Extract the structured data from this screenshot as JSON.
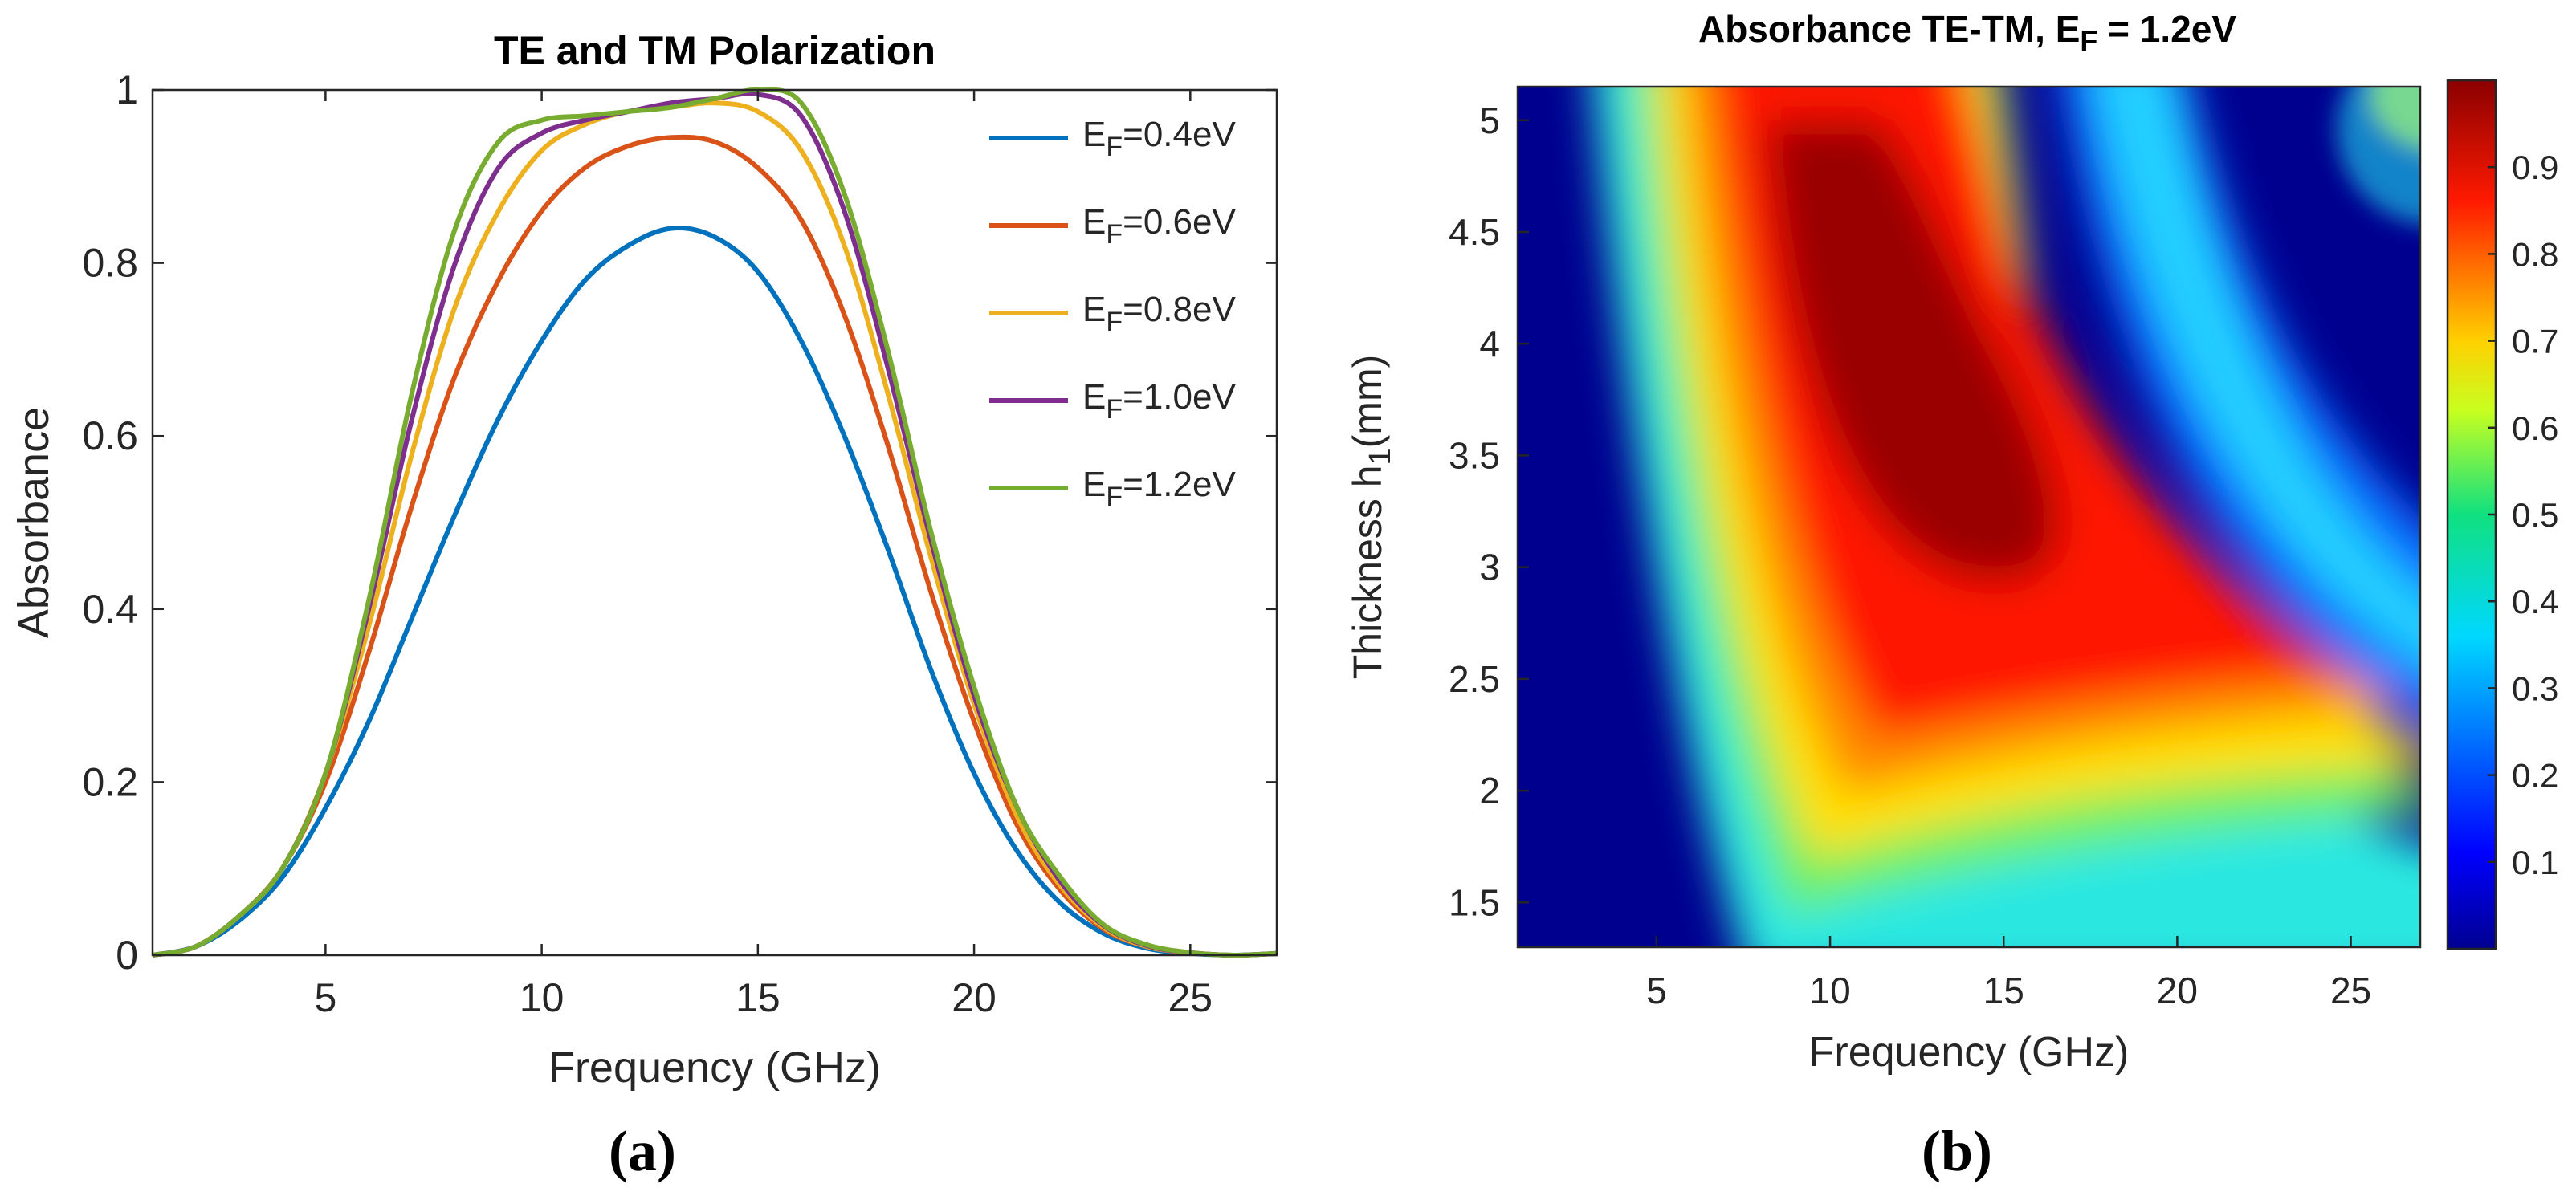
{
  "chart_data": [
    {
      "type": "line",
      "panel_label": "(a)",
      "title": "TE and TM Polarization",
      "xlabel": "Frequency (GHz)",
      "ylabel": "Absorbance",
      "xlim": [
        1,
        27
      ],
      "ylim": [
        0,
        1
      ],
      "xticks": [
        5,
        10,
        15,
        20,
        25
      ],
      "yticks": [
        0,
        0.2,
        0.4,
        0.6,
        0.8,
        1
      ],
      "ytick_labels": [
        "0",
        "0.2",
        "0.4",
        "0.6",
        "0.8",
        "1"
      ],
      "grid": false,
      "legend_position": "top-right",
      "x": [
        1,
        2,
        3,
        4,
        5,
        6,
        7,
        8,
        9,
        10,
        11,
        12,
        13,
        14,
        15,
        16,
        17,
        18,
        19,
        20,
        21,
        22,
        23,
        24,
        25,
        26,
        27
      ],
      "series": [
        {
          "name": "E_F=0.4eV",
          "legend_main": "E",
          "legend_sub": "F",
          "legend_rest": "=0.4eV",
          "color": "#0072BD",
          "values": [
            0,
            0.01,
            0.04,
            0.09,
            0.17,
            0.27,
            0.39,
            0.51,
            0.62,
            0.71,
            0.78,
            0.82,
            0.84,
            0.83,
            0.79,
            0.71,
            0.6,
            0.47,
            0.33,
            0.21,
            0.12,
            0.06,
            0.025,
            0.008,
            0.002,
            0.0,
            0.002
          ]
        },
        {
          "name": "E_F=0.6eV",
          "legend_main": "E",
          "legend_sub": "F",
          "legend_rest": "=0.6eV",
          "color": "#D95319",
          "values": [
            0,
            0.01,
            0.045,
            0.1,
            0.2,
            0.35,
            0.52,
            0.67,
            0.78,
            0.86,
            0.91,
            0.935,
            0.945,
            0.94,
            0.91,
            0.85,
            0.74,
            0.59,
            0.42,
            0.27,
            0.15,
            0.075,
            0.03,
            0.01,
            0.003,
            0.0,
            0.002
          ]
        },
        {
          "name": "E_F=0.8eV",
          "legend_main": "E",
          "legend_sub": "F",
          "legend_rest": "=0.8eV",
          "color": "#EDB120",
          "values": [
            0,
            0.01,
            0.045,
            0.1,
            0.21,
            0.38,
            0.58,
            0.75,
            0.86,
            0.93,
            0.96,
            0.975,
            0.98,
            0.985,
            0.975,
            0.93,
            0.82,
            0.65,
            0.46,
            0.29,
            0.16,
            0.08,
            0.032,
            0.01,
            0.003,
            0.0,
            0.002
          ]
        },
        {
          "name": "E_F=1.0eV",
          "legend_main": "E",
          "legend_sub": "F",
          "legend_rest": "=1.0eV",
          "color": "#7E2F8E",
          "values": [
            0,
            0.01,
            0.045,
            0.1,
            0.21,
            0.4,
            0.62,
            0.8,
            0.91,
            0.95,
            0.965,
            0.975,
            0.985,
            0.99,
            0.995,
            0.97,
            0.86,
            0.68,
            0.48,
            0.3,
            0.17,
            0.085,
            0.034,
            0.011,
            0.003,
            0.0,
            0.002
          ]
        },
        {
          "name": "E_F=1.2eV",
          "legend_main": "E",
          "legend_sub": "F",
          "legend_rest": "=1.2eV",
          "color": "#77AC30",
          "values": [
            0,
            0.01,
            0.045,
            0.1,
            0.21,
            0.41,
            0.65,
            0.84,
            0.94,
            0.965,
            0.97,
            0.975,
            0.98,
            0.99,
            1.0,
            0.985,
            0.88,
            0.7,
            0.49,
            0.31,
            0.17,
            0.09,
            0.035,
            0.012,
            0.003,
            0.0,
            0.002
          ]
        }
      ]
    },
    {
      "type": "heatmap",
      "panel_label": "(b)",
      "title_main": "Absorbance TE-TM, E",
      "title_sub": "F",
      "title_rest": " = 1.2eV",
      "xlabel": "Frequency (GHz)",
      "ylabel_main": "Thickness h",
      "ylabel_sub": "1",
      "ylabel_rest": "(mm)",
      "xlim": [
        1,
        27
      ],
      "ylim": [
        1.3,
        5.15
      ],
      "xticks": [
        5,
        10,
        15,
        20,
        25
      ],
      "yticks": [
        1.5,
        2,
        2.5,
        3,
        3.5,
        4,
        4.5,
        5
      ],
      "ytick_labels": [
        "1.5",
        "2",
        "2.5",
        "3",
        "3.5",
        "4",
        "4.5",
        "5"
      ],
      "colorbar": {
        "min": 0,
        "max": 1,
        "colormap": "jet",
        "ticks": [
          0.1,
          0.2,
          0.3,
          0.4,
          0.5,
          0.6,
          0.7,
          0.8,
          0.9
        ],
        "tick_labels": [
          "0.1",
          "0.2",
          "0.3",
          "0.4",
          "0.5",
          "0.6",
          "0.7",
          "0.8",
          "0.9"
        ]
      },
      "description_values": {
        "peak_absorbance": 0.99,
        "peak_region_frequency_GHz": [
          8,
          16
        ],
        "peak_region_thickness_mm": [
          3,
          4.5
        ]
      }
    }
  ]
}
